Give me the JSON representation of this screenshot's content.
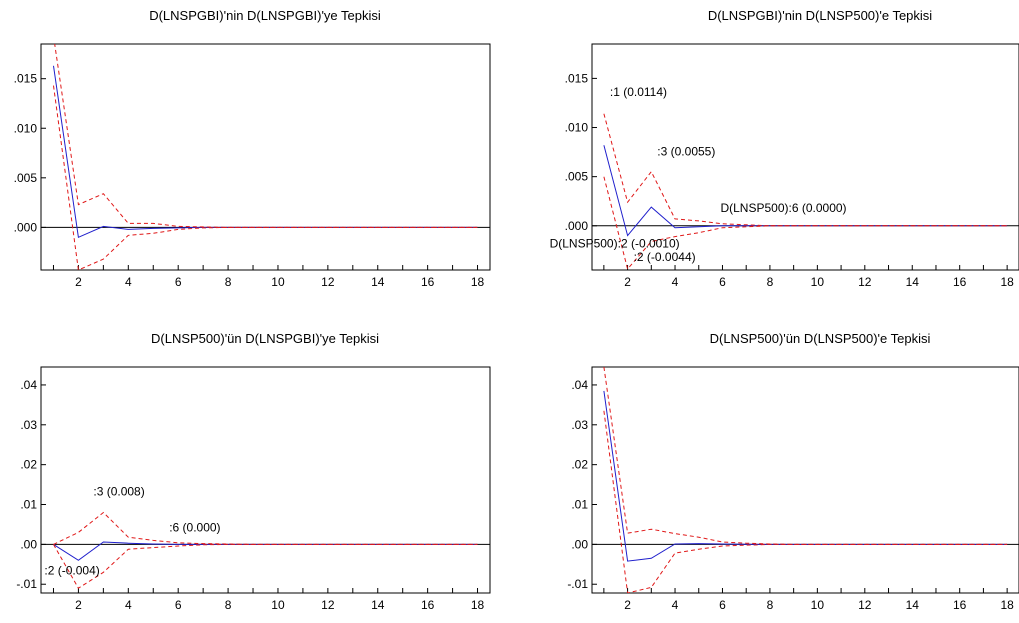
{
  "colors": {
    "response": "#1f1fcc",
    "band": "#e01818",
    "axis": "#000000",
    "background": "#ffffff"
  },
  "chart_data": [
    {
      "type": "line",
      "title": "D(LNSPGBI)'nin D(LNSPGBI)'ye Tepkisi",
      "x": [
        1,
        2,
        3,
        4,
        5,
        6,
        7,
        8,
        9,
        10,
        11,
        12,
        13,
        14,
        15,
        16,
        17,
        18
      ],
      "xticks": [
        "2",
        "4",
        "6",
        "8",
        "10",
        "12",
        "14",
        "16",
        "18"
      ],
      "yticks": [
        {
          "value": 0.015,
          "label": ".015"
        },
        {
          "value": 0.01,
          "label": ".010"
        },
        {
          "value": 0.005,
          "label": ".005"
        },
        {
          "value": 0.0,
          "label": ".000"
        }
      ],
      "xlim": [
        0.5,
        18.5
      ],
      "ylim": [
        -0.0043,
        0.0185
      ],
      "series": [
        {
          "role": "response",
          "values": [
            0.0163,
            -0.001,
            0.0001,
            -0.0002,
            -0.0001,
            -5e-05,
            0,
            0,
            0,
            0,
            0,
            0,
            0,
            0,
            0,
            0,
            0,
            0
          ]
        },
        {
          "role": "upper",
          "values": [
            0.0193,
            0.0023,
            0.0034,
            0.0004,
            0.0004,
            0.0001,
            5e-05,
            0,
            0,
            0,
            0,
            0,
            0,
            0,
            0,
            0,
            0,
            0
          ]
        },
        {
          "role": "lower",
          "values": [
            0.0143,
            -0.0043,
            -0.0032,
            -0.0008,
            -0.0006,
            -0.0002,
            -5e-05,
            0,
            0,
            0,
            0,
            0,
            0,
            0,
            0,
            0,
            0,
            0
          ]
        }
      ],
      "annotations": []
    },
    {
      "type": "line",
      "title": "D(LNSPGBI)'nin D(LNSP500)'e Tepkisi",
      "x": [
        1,
        2,
        3,
        4,
        5,
        6,
        7,
        8,
        9,
        10,
        11,
        12,
        13,
        14,
        15,
        16,
        17,
        18
      ],
      "xticks": [
        "2",
        "4",
        "6",
        "8",
        "10",
        "12",
        "14",
        "16",
        "18"
      ],
      "yticks": [
        {
          "value": 0.015,
          "label": ".015"
        },
        {
          "value": 0.01,
          "label": ".010"
        },
        {
          "value": 0.005,
          "label": ".005"
        },
        {
          "value": 0.0,
          "label": ".000"
        }
      ],
      "xlim": [
        0.5,
        18.5
      ],
      "ylim": [
        -0.0045,
        0.0185
      ],
      "series": [
        {
          "role": "response",
          "values": [
            0.0082,
            -0.001,
            0.0019,
            -0.0002,
            -0.0001,
            0.0,
            0,
            0,
            0,
            0,
            0,
            0,
            0,
            0,
            0,
            0,
            0,
            0
          ]
        },
        {
          "role": "upper",
          "values": [
            0.0114,
            0.0024,
            0.0055,
            0.0007,
            0.0005,
            0.0002,
            0.0001,
            0,
            0,
            0,
            0,
            0,
            0,
            0,
            0,
            0,
            0,
            0
          ]
        },
        {
          "role": "lower",
          "values": [
            0.005,
            -0.0044,
            -0.0016,
            -0.0011,
            -0.0007,
            -0.0002,
            -0.0001,
            0,
            0,
            0,
            0,
            0,
            0,
            0,
            0,
            0,
            0,
            0
          ]
        }
      ],
      "annotations": [
        {
          "text": ":1 (0.0114)",
          "x": 1,
          "y": 0.0114
        },
        {
          "text": ":3 (0.0055)",
          "x": 3,
          "y": 0.0055
        },
        {
          "text": "D(LNSP500):6 (0.0000)",
          "x": 6,
          "y": 0.0
        },
        {
          "text": "D(LNSP500):2 (-0.0010)",
          "x": 2,
          "y": -0.001
        },
        {
          "text": ":2 (-0.0044)",
          "x": 2,
          "y": -0.0044
        }
      ]
    },
    {
      "type": "line",
      "title": "D(LNSP500)'ün D(LNSPGBI)'ye Tepkisi",
      "x": [
        1,
        2,
        3,
        4,
        5,
        6,
        7,
        8,
        9,
        10,
        11,
        12,
        13,
        14,
        15,
        16,
        17,
        18
      ],
      "xticks": [
        "2",
        "4",
        "6",
        "8",
        "10",
        "12",
        "14",
        "16",
        "18"
      ],
      "yticks": [
        {
          "value": 0.04,
          "label": ".04"
        },
        {
          "value": 0.03,
          "label": ".03"
        },
        {
          "value": 0.02,
          "label": ".02"
        },
        {
          "value": 0.01,
          "label": ".01"
        },
        {
          "value": 0.0,
          "label": ".00"
        },
        {
          "value": -0.01,
          "label": "-.01"
        }
      ],
      "xlim": [
        0.5,
        18.5
      ],
      "ylim": [
        -0.0122,
        0.0445
      ],
      "series": [
        {
          "role": "response",
          "values": [
            0.0,
            -0.004,
            0.0006,
            0.0003,
            0.0001,
            0.0,
            0,
            0,
            0,
            0,
            0,
            0,
            0,
            0,
            0,
            0,
            0,
            0
          ]
        },
        {
          "role": "upper",
          "values": [
            0.0,
            0.003,
            0.008,
            0.0018,
            0.001,
            0.0004,
            0.0002,
            0.0001,
            0,
            0,
            0,
            0,
            0,
            0,
            0,
            0,
            0,
            0
          ]
        },
        {
          "role": "lower",
          "values": [
            0.0,
            -0.011,
            -0.007,
            -0.0012,
            -0.0008,
            -0.0004,
            -0.0001,
            0,
            0,
            0,
            0,
            0,
            0,
            0,
            0,
            0,
            0,
            0
          ]
        }
      ],
      "annotations": [
        {
          "text": ":3 (0.008)",
          "x": 3,
          "y": 0.008
        },
        {
          "text": ":6 (0.000)",
          "x": 6,
          "y": 0.0
        },
        {
          "text": ":2 (-0.004)",
          "x": 2,
          "y": -0.004
        }
      ]
    },
    {
      "type": "line",
      "title": "D(LNSP500)'ün D(LNSP500)'e Tepkisi",
      "x": [
        1,
        2,
        3,
        4,
        5,
        6,
        7,
        8,
        9,
        10,
        11,
        12,
        13,
        14,
        15,
        16,
        17,
        18
      ],
      "xticks": [
        "2",
        "4",
        "6",
        "8",
        "10",
        "12",
        "14",
        "16",
        "18"
      ],
      "yticks": [
        {
          "value": 0.04,
          "label": ".04"
        },
        {
          "value": 0.03,
          "label": ".03"
        },
        {
          "value": 0.02,
          "label": ".02"
        },
        {
          "value": 0.01,
          "label": ".01"
        },
        {
          "value": 0.0,
          "label": ".00"
        },
        {
          "value": -0.01,
          "label": "-.01"
        }
      ],
      "xlim": [
        0.5,
        18.5
      ],
      "ylim": [
        -0.0122,
        0.0445
      ],
      "series": [
        {
          "role": "response",
          "values": [
            0.0385,
            -0.0042,
            -0.0035,
            0.0001,
            0.0002,
            0.0001,
            5e-05,
            0,
            0,
            0,
            0,
            0,
            0,
            0,
            0,
            0,
            0,
            0
          ]
        },
        {
          "role": "upper",
          "values": [
            0.0445,
            0.0028,
            0.0038,
            0.0027,
            0.0018,
            0.0006,
            0.0003,
            0.0001,
            0,
            0,
            0,
            0,
            0,
            0,
            0,
            0,
            0,
            0
          ]
        },
        {
          "role": "lower",
          "values": [
            0.0335,
            -0.0122,
            -0.0108,
            -0.0022,
            -0.0012,
            -0.0004,
            -0.0002,
            0,
            0,
            0,
            0,
            0,
            0,
            0,
            0,
            0,
            0,
            0
          ]
        }
      ],
      "annotations": []
    }
  ]
}
